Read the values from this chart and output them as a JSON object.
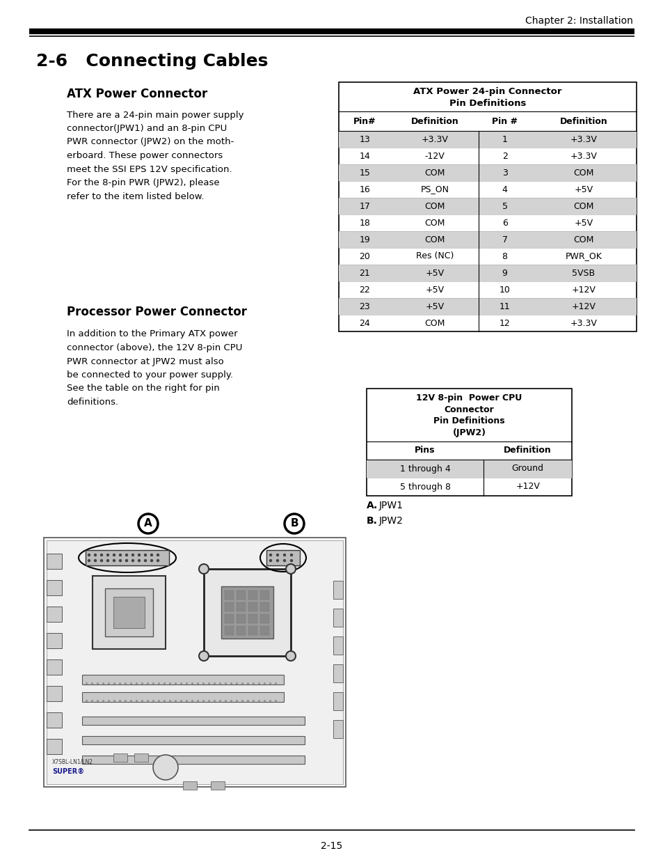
{
  "page_header": "Chapter 2: Installation",
  "section_title": "2-6   Connecting Cables",
  "subsection1_title": "ATX Power Connector",
  "subsection1_body_lines": [
    "There are a 24-pin main power supply",
    "connector(JPW1) and an 8-pin CPU",
    "PWR connector (JPW2) on the moth-",
    "erboard. These power connectors",
    "meet the SSI EPS 12V specification.",
    "For the 8-pin PWR (JPW2), please",
    "refer to the item listed below."
  ],
  "subsection2_title": "Processor Power Connector",
  "subsection2_body_lines": [
    "In addition to the Primary ATX power",
    "connector (above), the 12V 8-pin CPU",
    "PWR connector at JPW2 must also",
    "be connected to your power supply.",
    "See the table on the right for pin",
    "definitions."
  ],
  "table1_title_line1": "ATX Power 24-pin Connector",
  "table1_title_line2": "Pin Definitions",
  "table1_col_headers": [
    "Pin#",
    "Definition",
    "Pin #",
    "Definition"
  ],
  "table1_rows": [
    [
      "13",
      "+3.3V",
      "1",
      "+3.3V"
    ],
    [
      "14",
      "-12V",
      "2",
      "+3.3V"
    ],
    [
      "15",
      "COM",
      "3",
      "COM"
    ],
    [
      "16",
      "PS_ON",
      "4",
      "+5V"
    ],
    [
      "17",
      "COM",
      "5",
      "COM"
    ],
    [
      "18",
      "COM",
      "6",
      "+5V"
    ],
    [
      "19",
      "COM",
      "7",
      "COM"
    ],
    [
      "20",
      "Res (NC)",
      "8",
      "PWR_OK"
    ],
    [
      "21",
      "+5V",
      "9",
      "5VSB"
    ],
    [
      "22",
      "+5V",
      "10",
      "+12V"
    ],
    [
      "23",
      "+5V",
      "11",
      "+12V"
    ],
    [
      "24",
      "COM",
      "12",
      "+3.3V"
    ]
  ],
  "table1_shaded_rows": [
    0,
    2,
    4,
    6,
    8,
    10
  ],
  "table2_title_lines": [
    "12V 8-pin  Power CPU",
    "Connector",
    "Pin Definitions",
    "(JPW2)"
  ],
  "table2_col_headers": [
    "Pins",
    "Definition"
  ],
  "table2_rows": [
    [
      "1 through 4",
      "Ground"
    ],
    [
      "5 through 8",
      "+12V"
    ]
  ],
  "table2_shaded_rows": [
    0
  ],
  "label_a_bold": "A.",
  "label_a_text": " JPW1",
  "label_b_bold": "B.",
  "label_b_text": " JPW2",
  "page_number": "2-15",
  "bg_color": "#ffffff",
  "shaded_color": "#d3d3d3",
  "text_color": "#000000"
}
